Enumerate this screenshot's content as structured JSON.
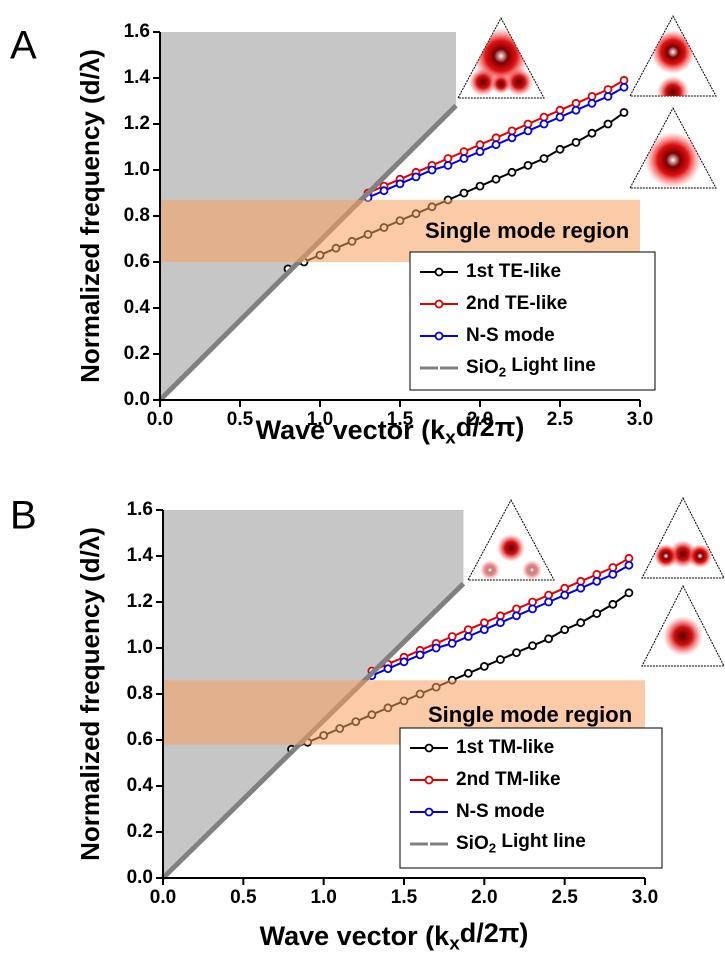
{
  "chart_data": [
    {
      "type": "line",
      "panel": "A",
      "xlabel": [
        "Wave vector (k",
        "x",
        "d/2π)"
      ],
      "ylabel": "Normalized frequency (d/λ)",
      "annotation": "Single mode region",
      "region": [
        0.6,
        0.87
      ],
      "xlim": [
        0,
        3.0
      ],
      "ylim": [
        0,
        1.6
      ],
      "xticks": [
        {
          "value": 0,
          "label": "0.0"
        },
        {
          "value": 0.5,
          "label": "0.5"
        },
        {
          "value": 1,
          "label": "1.0"
        },
        {
          "value": 1.5,
          "label": "1.5"
        },
        {
          "value": 2,
          "label": "2.0"
        },
        {
          "value": 2.5,
          "label": "2.5"
        },
        {
          "value": 3,
          "label": "3.0"
        }
      ],
      "yticks": [
        {
          "value": 0,
          "label": "0.0"
        },
        {
          "value": 0.2,
          "label": "0.2"
        },
        {
          "value": 0.4,
          "label": "0.4"
        },
        {
          "value": 0.6,
          "label": "0.6"
        },
        {
          "value": 0.8,
          "label": "0.8"
        },
        {
          "value": 1,
          "label": "1.0"
        },
        {
          "value": 1.2,
          "label": "1.2"
        },
        {
          "value": 1.4,
          "label": "1.4"
        },
        {
          "value": 1.6,
          "label": "1.6"
        }
      ],
      "series": [
        {
          "name": "1st TE-like",
          "color": "#000000",
          "markers": true,
          "x": [
            0.8,
            0.9,
            1.0,
            1.1,
            1.2,
            1.3,
            1.4,
            1.5,
            1.6,
            1.7,
            1.8,
            1.9,
            2.0,
            2.1,
            2.2,
            2.3,
            2.4,
            2.5,
            2.6,
            2.7,
            2.8,
            2.9
          ],
          "values": [
            0.57,
            0.6,
            0.63,
            0.66,
            0.69,
            0.72,
            0.75,
            0.78,
            0.81,
            0.84,
            0.87,
            0.9,
            0.93,
            0.96,
            0.99,
            1.02,
            1.05,
            1.09,
            1.12,
            1.16,
            1.2,
            1.25
          ]
        },
        {
          "name": "2nd TE-like",
          "color": "#e00000",
          "markers": true,
          "x": [
            1.3,
            1.4,
            1.5,
            1.6,
            1.7,
            1.8,
            1.9,
            2.0,
            2.1,
            2.2,
            2.3,
            2.4,
            2.5,
            2.6,
            2.7,
            2.8,
            2.9
          ],
          "values": [
            0.9,
            0.93,
            0.96,
            0.99,
            1.02,
            1.05,
            1.08,
            1.11,
            1.14,
            1.17,
            1.2,
            1.23,
            1.26,
            1.29,
            1.32,
            1.35,
            1.39
          ]
        },
        {
          "name": "N-S mode",
          "color": "#0000e0",
          "markers": true,
          "x": [
            1.3,
            1.4,
            1.5,
            1.6,
            1.7,
            1.8,
            1.9,
            2.0,
            2.1,
            2.2,
            2.3,
            2.4,
            2.5,
            2.6,
            2.7,
            2.8,
            2.9
          ],
          "values": [
            0.88,
            0.91,
            0.94,
            0.97,
            1.0,
            1.02,
            1.05,
            1.08,
            1.11,
            1.14,
            1.17,
            1.2,
            1.23,
            1.26,
            1.29,
            1.32,
            1.36
          ]
        },
        {
          "name": [
            "SiO",
            "2",
            " Light line"
          ],
          "color": "#808080",
          "markers": false,
          "x": [
            0,
            1.85
          ],
          "values": [
            0,
            1.28
          ]
        }
      ]
    },
    {
      "type": "line",
      "panel": "B",
      "xlabel": [
        "Wave vector (k",
        "x",
        "d/2π)"
      ],
      "ylabel": "Normalized frequency (d/λ)",
      "annotation": "Single mode region",
      "region": [
        0.58,
        0.86
      ],
      "xlim": [
        0,
        3.0
      ],
      "ylim": [
        0,
        1.6
      ],
      "xticks": [
        {
          "value": 0,
          "label": "0.0"
        },
        {
          "value": 0.5,
          "label": "0.5"
        },
        {
          "value": 1,
          "label": "1.0"
        },
        {
          "value": 1.5,
          "label": "1.5"
        },
        {
          "value": 2,
          "label": "2.0"
        },
        {
          "value": 2.5,
          "label": "2.5"
        },
        {
          "value": 3,
          "label": "3.0"
        }
      ],
      "yticks": [
        {
          "value": 0,
          "label": "0.0"
        },
        {
          "value": 0.2,
          "label": "0.2"
        },
        {
          "value": 0.4,
          "label": "0.4"
        },
        {
          "value": 0.6,
          "label": "0.6"
        },
        {
          "value": 0.8,
          "label": "0.8"
        },
        {
          "value": 1,
          "label": "1.0"
        },
        {
          "value": 1.2,
          "label": "1.2"
        },
        {
          "value": 1.4,
          "label": "1.4"
        },
        {
          "value": 1.6,
          "label": "1.6"
        }
      ],
      "series": [
        {
          "name": "1st TM-like",
          "color": "#000000",
          "markers": true,
          "x": [
            0.8,
            0.9,
            1.0,
            1.1,
            1.2,
            1.3,
            1.4,
            1.5,
            1.6,
            1.7,
            1.8,
            1.9,
            2.0,
            2.1,
            2.2,
            2.3,
            2.4,
            2.5,
            2.6,
            2.7,
            2.8,
            2.9
          ],
          "values": [
            0.56,
            0.59,
            0.62,
            0.65,
            0.68,
            0.71,
            0.74,
            0.77,
            0.8,
            0.83,
            0.86,
            0.89,
            0.92,
            0.95,
            0.98,
            1.01,
            1.04,
            1.08,
            1.11,
            1.15,
            1.19,
            1.24
          ]
        },
        {
          "name": "2nd TM-like",
          "color": "#e00000",
          "markers": true,
          "x": [
            1.3,
            1.4,
            1.5,
            1.6,
            1.7,
            1.8,
            1.9,
            2.0,
            2.1,
            2.2,
            2.3,
            2.4,
            2.5,
            2.6,
            2.7,
            2.8,
            2.9
          ],
          "values": [
            0.9,
            0.93,
            0.96,
            0.99,
            1.02,
            1.05,
            1.08,
            1.11,
            1.14,
            1.17,
            1.2,
            1.23,
            1.26,
            1.29,
            1.32,
            1.35,
            1.39
          ]
        },
        {
          "name": "N-S mode",
          "color": "#0000e0",
          "markers": true,
          "x": [
            1.3,
            1.4,
            1.5,
            1.6,
            1.7,
            1.8,
            1.9,
            2.0,
            2.1,
            2.2,
            2.3,
            2.4,
            2.5,
            2.6,
            2.7,
            2.8,
            2.9
          ],
          "values": [
            0.88,
            0.91,
            0.94,
            0.97,
            1.0,
            1.02,
            1.05,
            1.08,
            1.11,
            1.14,
            1.17,
            1.2,
            1.23,
            1.26,
            1.29,
            1.32,
            1.36
          ]
        },
        {
          "name": [
            "SiO",
            "2",
            " Light line"
          ],
          "color": "#808080",
          "markers": false,
          "x": [
            0,
            1.87
          ],
          "values": [
            0,
            1.28
          ]
        }
      ]
    }
  ]
}
